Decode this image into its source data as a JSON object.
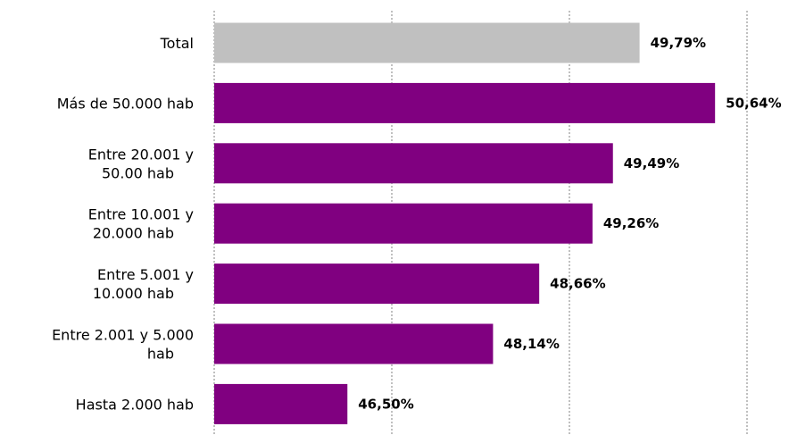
{
  "chart_data": {
    "type": "bar",
    "orientation": "horizontal",
    "categories": [
      "Total",
      "Más de 50.000 hab",
      "Entre 20.001 y 50.00 hab",
      "Entre 10.001 y 20.000 hab",
      "Entre 5.001 y 10.000 hab",
      "Entre 2.001 y 5.000 hab",
      "Hasta 2.000 hab"
    ],
    "category_label_lines": [
      [
        "Total"
      ],
      [
        "Más de 50.000 hab"
      ],
      [
        "Entre 20.001 y",
        "50.00 hab"
      ],
      [
        "Entre 10.001 y",
        "20.000 hab"
      ],
      [
        "Entre 5.001 y",
        "10.000 hab"
      ],
      [
        "Entre 2.001 y 5.000",
        "hab"
      ],
      [
        "Hasta 2.000 hab"
      ]
    ],
    "values": [
      49.79,
      50.64,
      49.49,
      49.26,
      48.66,
      48.14,
      46.5
    ],
    "value_labels": [
      "49,79%",
      "50,64%",
      "49,49%",
      "49,26%",
      "48,66%",
      "48,14%",
      "46,50%"
    ],
    "colors": [
      "#c0c0c0",
      "#800080",
      "#800080",
      "#800080",
      "#800080",
      "#800080",
      "#800080"
    ],
    "xlim": [
      45,
      51
    ],
    "grid": true,
    "grid_style": "dashed-vertical",
    "title": "",
    "xlabel": "",
    "ylabel": ""
  }
}
